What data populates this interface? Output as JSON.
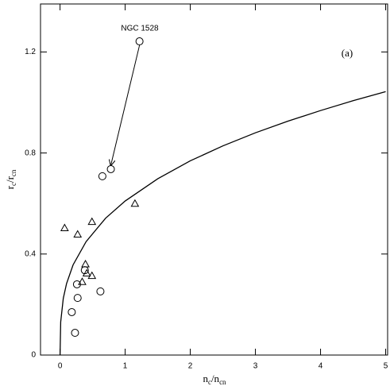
{
  "chart_data": {
    "type": "scatter",
    "annotation": "NGC 1528",
    "panel_label": "(a)",
    "xlabel": [
      "n",
      "c",
      "/n",
      "cn"
    ],
    "ylabel": [
      "r",
      "c",
      "/r",
      "cn"
    ],
    "xlim": [
      -0.3,
      5.03
    ],
    "ylim": [
      0,
      1.39
    ],
    "xticks": [
      0,
      1,
      2,
      3,
      4,
      5
    ],
    "yticks": [
      0,
      0.4,
      0.8,
      1.2
    ],
    "color": "#000000",
    "curve": {
      "x": [
        0,
        0.01,
        0.05,
        0.1,
        0.2,
        0.4,
        0.7,
        1,
        1.5,
        2,
        2.5,
        3,
        3.5,
        4,
        4.5,
        5
      ],
      "values": [
        0,
        0.131,
        0.225,
        0.283,
        0.357,
        0.449,
        0.542,
        0.61,
        0.698,
        0.769,
        0.828,
        0.88,
        0.926,
        0.968,
        1.007,
        1.043
      ]
    },
    "series": [
      {
        "marker": "circle",
        "x": [
          1.22,
          0.78,
          0.65,
          0.26,
          0.38,
          0.27,
          0.18,
          0.23,
          0.62
        ],
        "values": [
          1.242,
          0.736,
          0.708,
          0.28,
          0.336,
          0.226,
          0.17,
          0.088,
          0.252
        ]
      },
      {
        "marker": "triangle",
        "x": [
          0.07,
          0.27,
          0.49,
          1.15,
          0.39,
          0.41,
          0.34,
          0.49
        ],
        "values": [
          0.503,
          0.478,
          0.528,
          0.6,
          0.36,
          0.324,
          0.29,
          0.314
        ]
      }
    ]
  }
}
